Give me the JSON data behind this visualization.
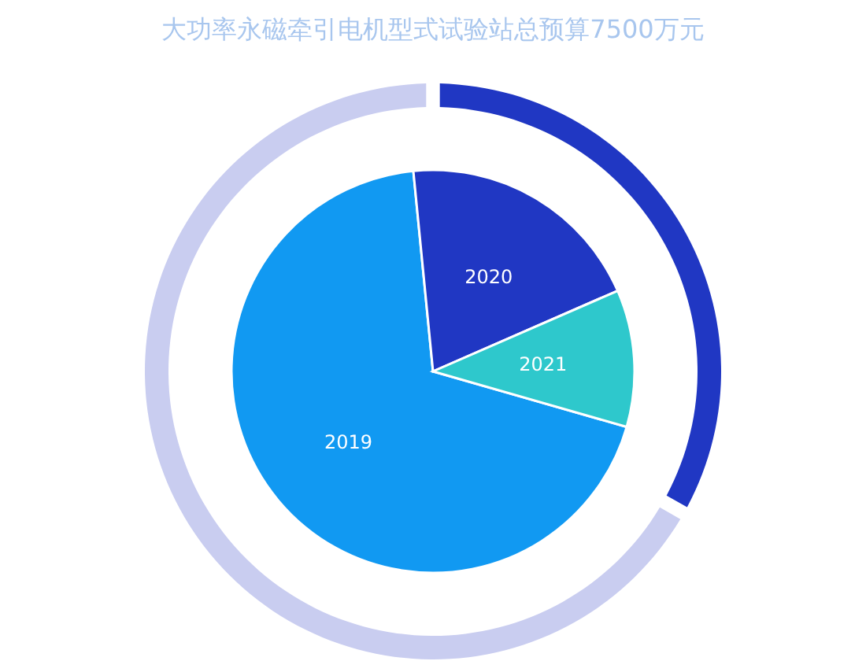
{
  "chart_data": [
    {
      "type": "pie",
      "title": "大功率永磁牵引电机型式试验站总预算7500万元",
      "categories": [
        "2019",
        "2020",
        "2021"
      ],
      "values": [
        69,
        20,
        11
      ],
      "colors": [
        "#1199f2",
        "#2037c3",
        "#2ec8cc"
      ],
      "data_labels": false
    },
    {
      "type": "donut",
      "categories": [
        null,
        null
      ],
      "values": [
        33,
        67
      ],
      "colors": [
        "#2037c3",
        "#c9cdf0"
      ]
    }
  ]
}
